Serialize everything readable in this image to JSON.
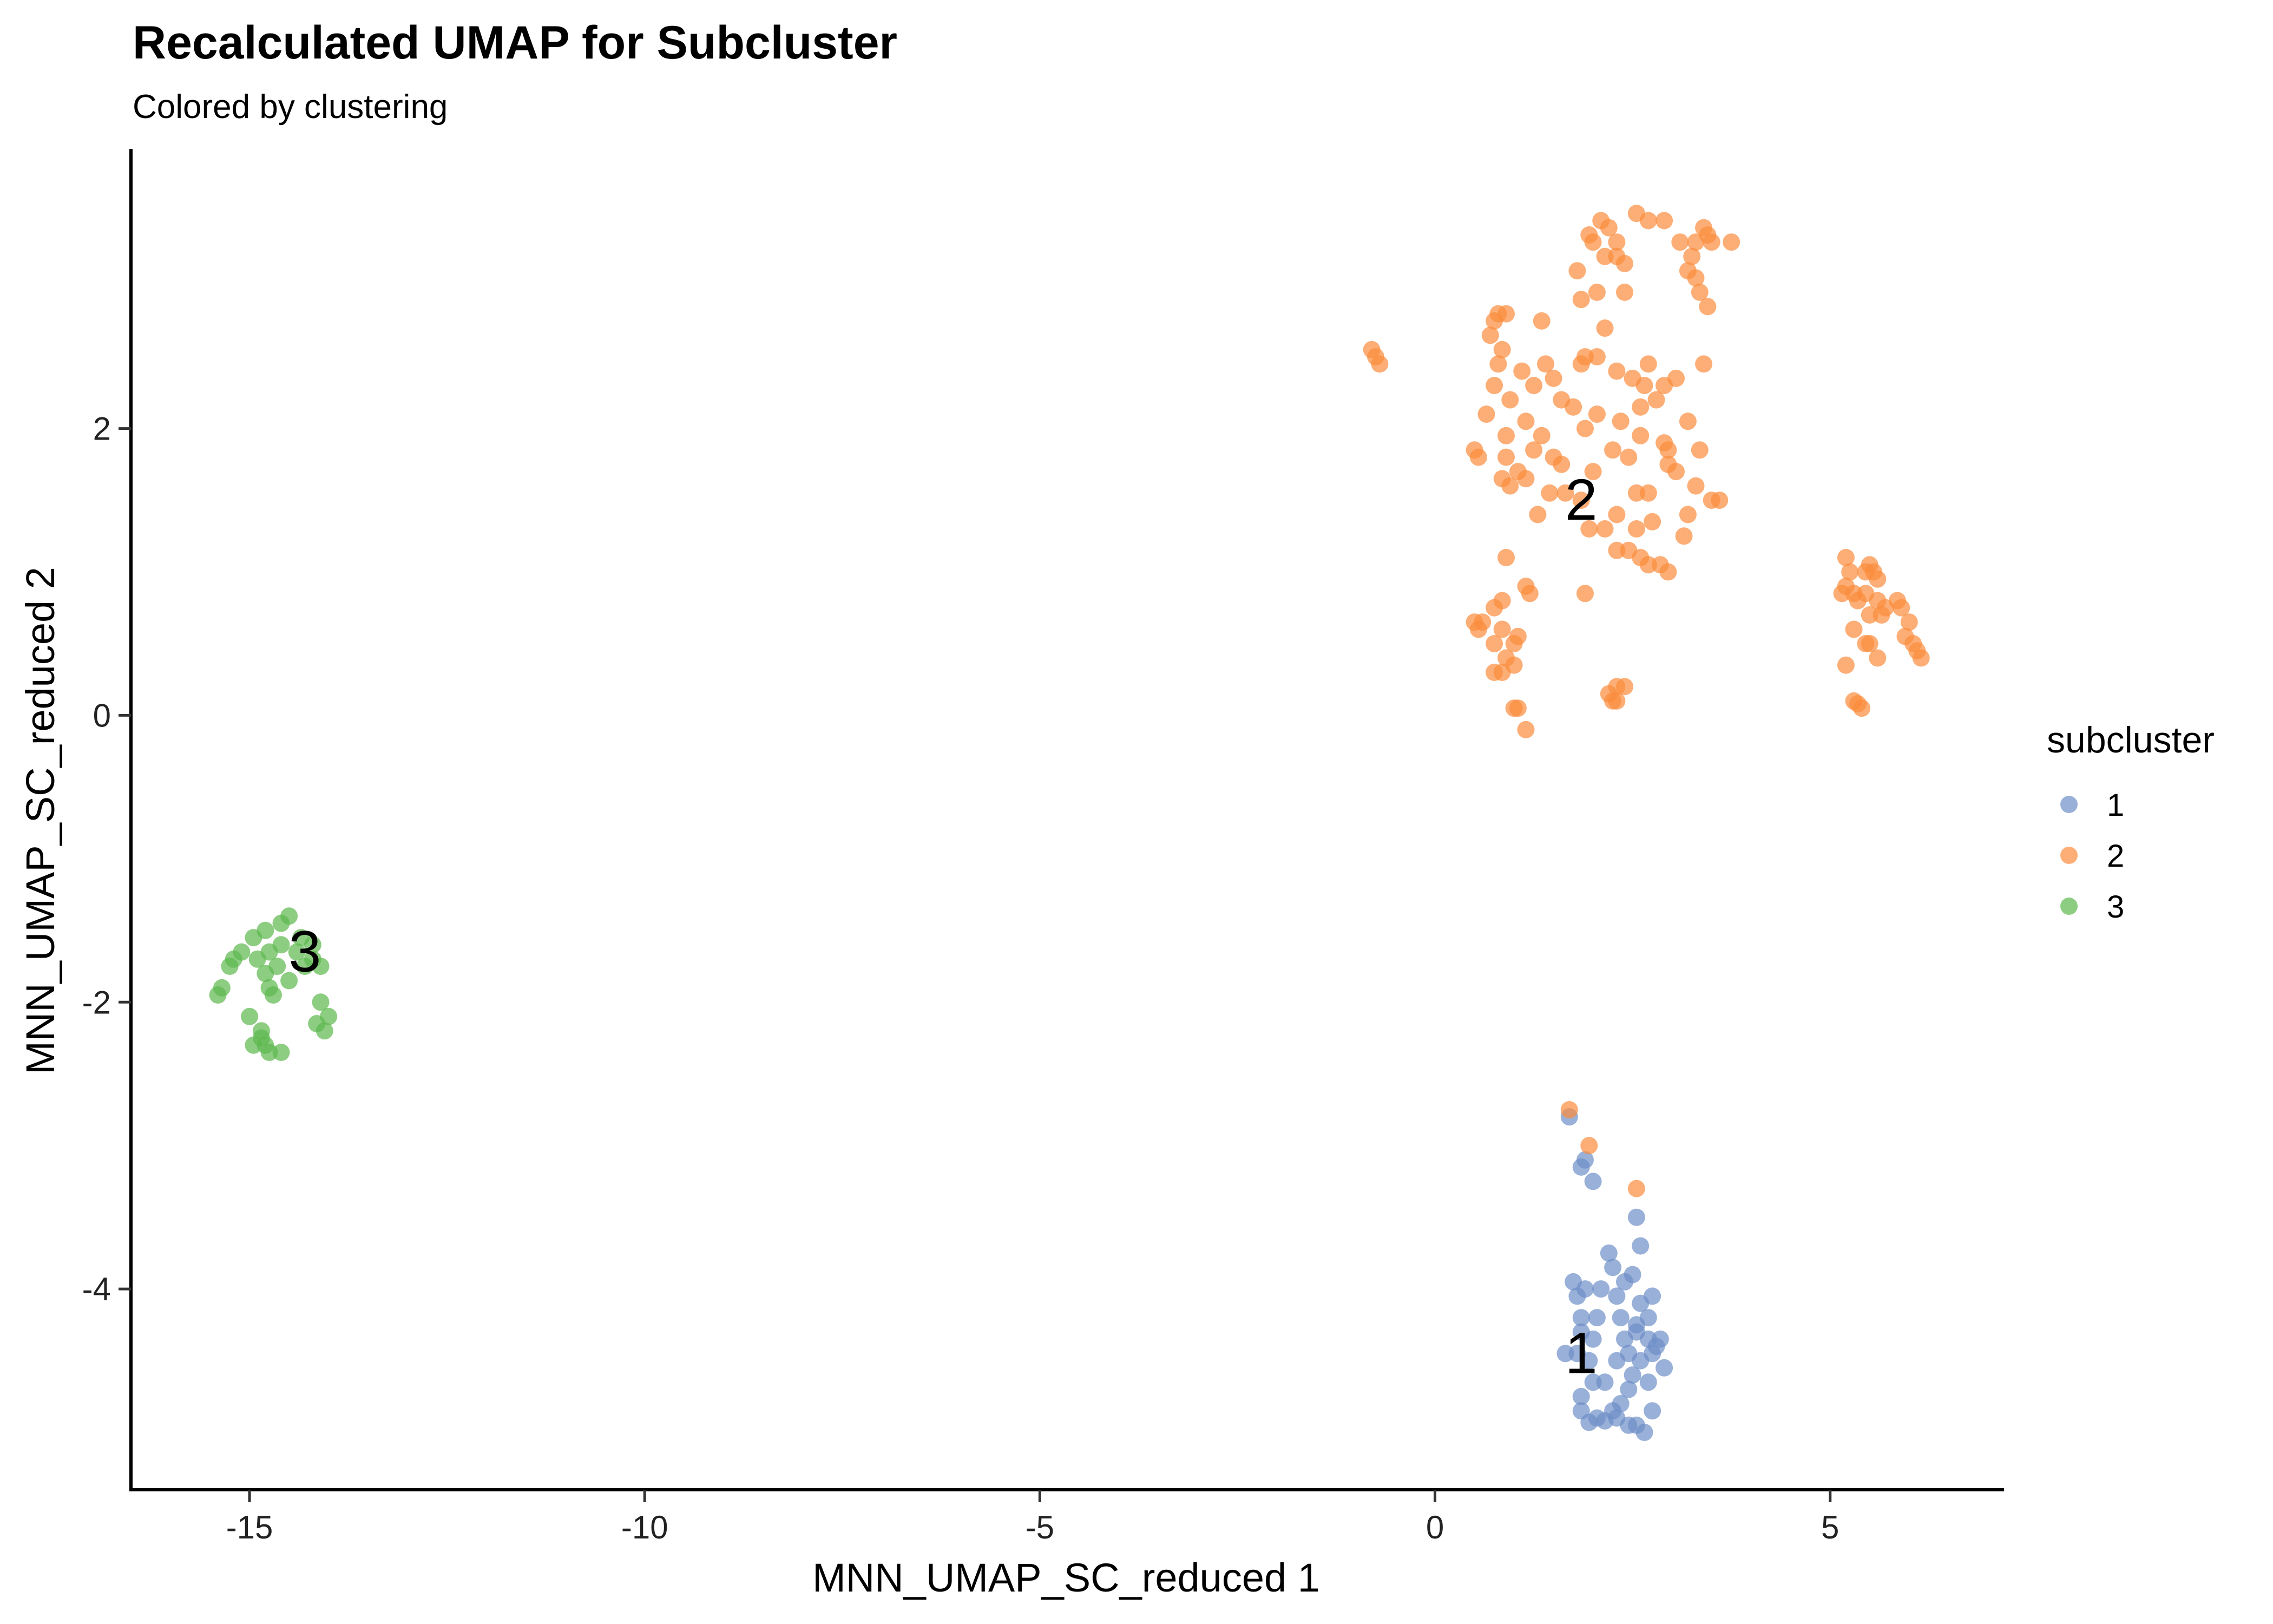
{
  "chart_data": {
    "type": "scatter",
    "title": "Recalculated UMAP for Subcluster",
    "subtitle": "Colored by clustering",
    "xlabel": "MNN_UMAP_SC_reduced 1",
    "ylabel": "MNN_UMAP_SC_reduced 2",
    "xlim": [
      -16.5,
      7.2
    ],
    "ylim": [
      -5.4,
      3.95
    ],
    "xticks": [
      -15,
      -10,
      -5,
      0,
      5
    ],
    "yticks": [
      -4,
      -2,
      0,
      2
    ],
    "grid": false,
    "legend": {
      "title": "subcluster",
      "position": "right",
      "entries": [
        {
          "label": "1",
          "color": "#6e8fc8"
        },
        {
          "label": "2",
          "color": "#fb8b3c"
        },
        {
          "label": "3",
          "color": "#5cb84d"
        }
      ]
    },
    "cluster_labels": [
      {
        "text": "1",
        "x": 1.85,
        "y": -4.45
      },
      {
        "text": "2",
        "x": 1.85,
        "y": 1.5
      },
      {
        "text": "3",
        "x": -14.3,
        "y": -1.65
      }
    ],
    "series": [
      {
        "name": "1",
        "color": "#6e8fc8",
        "points": [
          [
            1.7,
            -2.8
          ],
          [
            1.85,
            -3.15
          ],
          [
            1.9,
            -3.1
          ],
          [
            2.0,
            -3.25
          ],
          [
            2.55,
            -3.5
          ],
          [
            2.6,
            -3.7
          ],
          [
            2.2,
            -3.75
          ],
          [
            2.4,
            -3.95
          ],
          [
            2.25,
            -3.85
          ],
          [
            2.5,
            -3.9
          ],
          [
            1.75,
            -3.95
          ],
          [
            1.8,
            -4.05
          ],
          [
            1.9,
            -4.0
          ],
          [
            2.1,
            -4.0
          ],
          [
            2.3,
            -4.05
          ],
          [
            2.6,
            -4.1
          ],
          [
            2.75,
            -4.05
          ],
          [
            1.85,
            -4.2
          ],
          [
            2.05,
            -4.2
          ],
          [
            2.35,
            -4.2
          ],
          [
            2.55,
            -4.25
          ],
          [
            2.7,
            -4.2
          ],
          [
            1.85,
            -4.3
          ],
          [
            2.0,
            -4.35
          ],
          [
            2.4,
            -4.35
          ],
          [
            2.55,
            -4.3
          ],
          [
            2.7,
            -4.35
          ],
          [
            2.85,
            -4.35
          ],
          [
            2.75,
            -4.45
          ],
          [
            2.6,
            -4.5
          ],
          [
            2.8,
            -4.4
          ],
          [
            1.65,
            -4.45
          ],
          [
            1.8,
            -4.45
          ],
          [
            1.95,
            -4.5
          ],
          [
            2.3,
            -4.5
          ],
          [
            2.45,
            -4.45
          ],
          [
            2.9,
            -4.55
          ],
          [
            2.5,
            -4.6
          ],
          [
            2.15,
            -4.65
          ],
          [
            2.0,
            -4.65
          ],
          [
            2.45,
            -4.7
          ],
          [
            2.7,
            -4.65
          ],
          [
            1.85,
            -4.75
          ],
          [
            2.35,
            -4.8
          ],
          [
            1.85,
            -4.85
          ],
          [
            2.25,
            -4.85
          ],
          [
            2.75,
            -4.85
          ],
          [
            2.05,
            -4.9
          ],
          [
            2.15,
            -4.92
          ],
          [
            1.95,
            -4.93
          ],
          [
            2.3,
            -4.9
          ],
          [
            2.55,
            -4.95
          ],
          [
            2.65,
            -5.0
          ],
          [
            2.45,
            -4.95
          ]
        ]
      },
      {
        "name": "2",
        "color": "#fb8b3c",
        "points": [
          [
            1.7,
            -2.75
          ],
          [
            1.95,
            -3.0
          ],
          [
            2.55,
            -3.3
          ],
          [
            -0.8,
            2.55
          ],
          [
            -0.75,
            2.5
          ],
          [
            -0.7,
            2.45
          ],
          [
            1.95,
            3.35
          ],
          [
            2.1,
            3.45
          ],
          [
            2.3,
            3.3
          ],
          [
            2.55,
            3.5
          ],
          [
            2.7,
            3.45
          ],
          [
            2.9,
            3.45
          ],
          [
            2.0,
            3.3
          ],
          [
            2.2,
            3.4
          ],
          [
            3.1,
            3.3
          ],
          [
            3.4,
            3.4
          ],
          [
            3.5,
            3.3
          ],
          [
            3.75,
            3.3
          ],
          [
            3.3,
            3.3
          ],
          [
            3.45,
            3.35
          ],
          [
            1.8,
            3.1
          ],
          [
            2.15,
            3.2
          ],
          [
            2.3,
            3.2
          ],
          [
            2.4,
            3.15
          ],
          [
            3.2,
            3.1
          ],
          [
            3.25,
            3.2
          ],
          [
            3.3,
            3.05
          ],
          [
            3.35,
            2.95
          ],
          [
            3.45,
            2.85
          ],
          [
            2.05,
            2.95
          ],
          [
            1.85,
            2.9
          ],
          [
            2.4,
            2.95
          ],
          [
            0.75,
            2.75
          ],
          [
            0.8,
            2.8
          ],
          [
            0.9,
            2.8
          ],
          [
            1.35,
            2.75
          ],
          [
            0.7,
            2.65
          ],
          [
            0.85,
            2.55
          ],
          [
            1.1,
            2.4
          ],
          [
            0.8,
            2.45
          ],
          [
            1.4,
            2.45
          ],
          [
            1.85,
            2.45
          ],
          [
            2.05,
            2.5
          ],
          [
            2.3,
            2.4
          ],
          [
            2.7,
            2.45
          ],
          [
            2.5,
            2.35
          ],
          [
            2.65,
            2.3
          ],
          [
            2.9,
            2.3
          ],
          [
            3.05,
            2.35
          ],
          [
            3.4,
            2.45
          ],
          [
            1.25,
            2.3
          ],
          [
            1.5,
            2.35
          ],
          [
            2.15,
            2.7
          ],
          [
            1.9,
            2.5
          ],
          [
            0.75,
            2.3
          ],
          [
            0.95,
            2.2
          ],
          [
            1.6,
            2.2
          ],
          [
            2.35,
            2.05
          ],
          [
            2.6,
            2.15
          ],
          [
            2.8,
            2.2
          ],
          [
            0.65,
            2.1
          ],
          [
            1.15,
            2.05
          ],
          [
            1.75,
            2.15
          ],
          [
            1.9,
            2.0
          ],
          [
            2.05,
            2.1
          ],
          [
            2.6,
            1.95
          ],
          [
            2.9,
            1.9
          ],
          [
            2.95,
            1.85
          ],
          [
            3.2,
            2.05
          ],
          [
            0.9,
            1.95
          ],
          [
            1.35,
            1.95
          ],
          [
            0.5,
            1.85
          ],
          [
            0.55,
            1.8
          ],
          [
            0.9,
            1.8
          ],
          [
            1.25,
            1.85
          ],
          [
            1.5,
            1.8
          ],
          [
            2.25,
            1.85
          ],
          [
            2.45,
            1.8
          ],
          [
            2.95,
            1.75
          ],
          [
            3.35,
            1.85
          ],
          [
            0.85,
            1.65
          ],
          [
            1.05,
            1.7
          ],
          [
            1.6,
            1.75
          ],
          [
            2.0,
            1.7
          ],
          [
            1.15,
            1.65
          ],
          [
            2.7,
            1.55
          ],
          [
            3.05,
            1.7
          ],
          [
            3.3,
            1.6
          ],
          [
            0.95,
            1.6
          ],
          [
            1.65,
            1.55
          ],
          [
            1.45,
            1.55
          ],
          [
            2.55,
            1.55
          ],
          [
            3.5,
            1.5
          ],
          [
            3.6,
            1.5
          ],
          [
            1.3,
            1.4
          ],
          [
            1.85,
            1.5
          ],
          [
            2.3,
            1.4
          ],
          [
            2.75,
            1.35
          ],
          [
            3.2,
            1.4
          ],
          [
            1.95,
            1.3
          ],
          [
            2.15,
            1.3
          ],
          [
            2.55,
            1.3
          ],
          [
            3.15,
            1.25
          ],
          [
            2.3,
            1.15
          ],
          [
            2.45,
            1.15
          ],
          [
            2.6,
            1.1
          ],
          [
            2.7,
            1.05
          ],
          [
            2.95,
            1.0
          ],
          [
            2.85,
            1.05
          ],
          [
            0.9,
            1.1
          ],
          [
            1.15,
            0.9
          ],
          [
            1.2,
            0.85
          ],
          [
            1.9,
            0.85
          ],
          [
            0.75,
            0.75
          ],
          [
            0.85,
            0.8
          ],
          [
            0.5,
            0.65
          ],
          [
            0.55,
            0.6
          ],
          [
            0.6,
            0.65
          ],
          [
            0.85,
            0.6
          ],
          [
            0.75,
            0.5
          ],
          [
            1.0,
            0.5
          ],
          [
            1.05,
            0.55
          ],
          [
            0.9,
            0.4
          ],
          [
            1.0,
            0.35
          ],
          [
            0.75,
            0.3
          ],
          [
            0.85,
            0.3
          ],
          [
            2.2,
            0.15
          ],
          [
            2.25,
            0.1
          ],
          [
            2.3,
            0.2
          ],
          [
            2.4,
            0.2
          ],
          [
            2.3,
            0.1
          ],
          [
            1.0,
            0.05
          ],
          [
            1.05,
            0.05
          ],
          [
            1.15,
            -0.1
          ],
          [
            5.2,
            1.1
          ],
          [
            5.25,
            1.0
          ],
          [
            5.2,
            0.9
          ],
          [
            5.3,
            0.85
          ],
          [
            5.45,
            1.0
          ],
          [
            5.5,
            1.05
          ],
          [
            5.55,
            1.0
          ],
          [
            5.6,
            0.95
          ],
          [
            5.45,
            0.85
          ],
          [
            5.35,
            0.8
          ],
          [
            5.6,
            0.8
          ],
          [
            5.7,
            0.75
          ],
          [
            5.85,
            0.8
          ],
          [
            5.9,
            0.75
          ],
          [
            6.0,
            0.65
          ],
          [
            5.5,
            0.7
          ],
          [
            5.65,
            0.7
          ],
          [
            5.95,
            0.55
          ],
          [
            5.15,
            0.85
          ],
          [
            5.3,
            0.6
          ],
          [
            5.45,
            0.5
          ],
          [
            5.6,
            0.4
          ],
          [
            6.05,
            0.5
          ],
          [
            6.1,
            0.45
          ],
          [
            6.15,
            0.4
          ],
          [
            5.2,
            0.35
          ],
          [
            5.3,
            0.1
          ],
          [
            5.35,
            0.08
          ],
          [
            5.4,
            0.05
          ],
          [
            5.5,
            0.5
          ]
        ]
      },
      {
        "name": "3",
        "color": "#5cb84d",
        "points": [
          [
            -15.4,
            -1.95
          ],
          [
            -15.35,
            -1.9
          ],
          [
            -15.25,
            -1.75
          ],
          [
            -15.2,
            -1.7
          ],
          [
            -15.1,
            -1.65
          ],
          [
            -14.95,
            -1.55
          ],
          [
            -14.8,
            -1.5
          ],
          [
            -14.6,
            -1.45
          ],
          [
            -14.5,
            -1.4
          ],
          [
            -14.35,
            -1.55
          ],
          [
            -14.2,
            -1.6
          ],
          [
            -14.9,
            -1.7
          ],
          [
            -14.75,
            -1.65
          ],
          [
            -14.6,
            -1.6
          ],
          [
            -14.4,
            -1.65
          ],
          [
            -14.2,
            -1.7
          ],
          [
            -14.1,
            -1.75
          ],
          [
            -14.8,
            -1.8
          ],
          [
            -14.5,
            -1.85
          ],
          [
            -14.65,
            -1.75
          ],
          [
            -14.3,
            -1.75
          ],
          [
            -14.75,
            -1.9
          ],
          [
            -14.7,
            -1.95
          ],
          [
            -14.1,
            -2.0
          ],
          [
            -14.0,
            -2.1
          ],
          [
            -14.15,
            -2.15
          ],
          [
            -14.05,
            -2.2
          ],
          [
            -15.0,
            -2.1
          ],
          [
            -14.85,
            -2.2
          ],
          [
            -14.8,
            -2.3
          ],
          [
            -14.95,
            -2.3
          ],
          [
            -14.75,
            -2.35
          ],
          [
            -14.6,
            -2.35
          ],
          [
            -14.85,
            -2.25
          ]
        ]
      }
    ]
  }
}
